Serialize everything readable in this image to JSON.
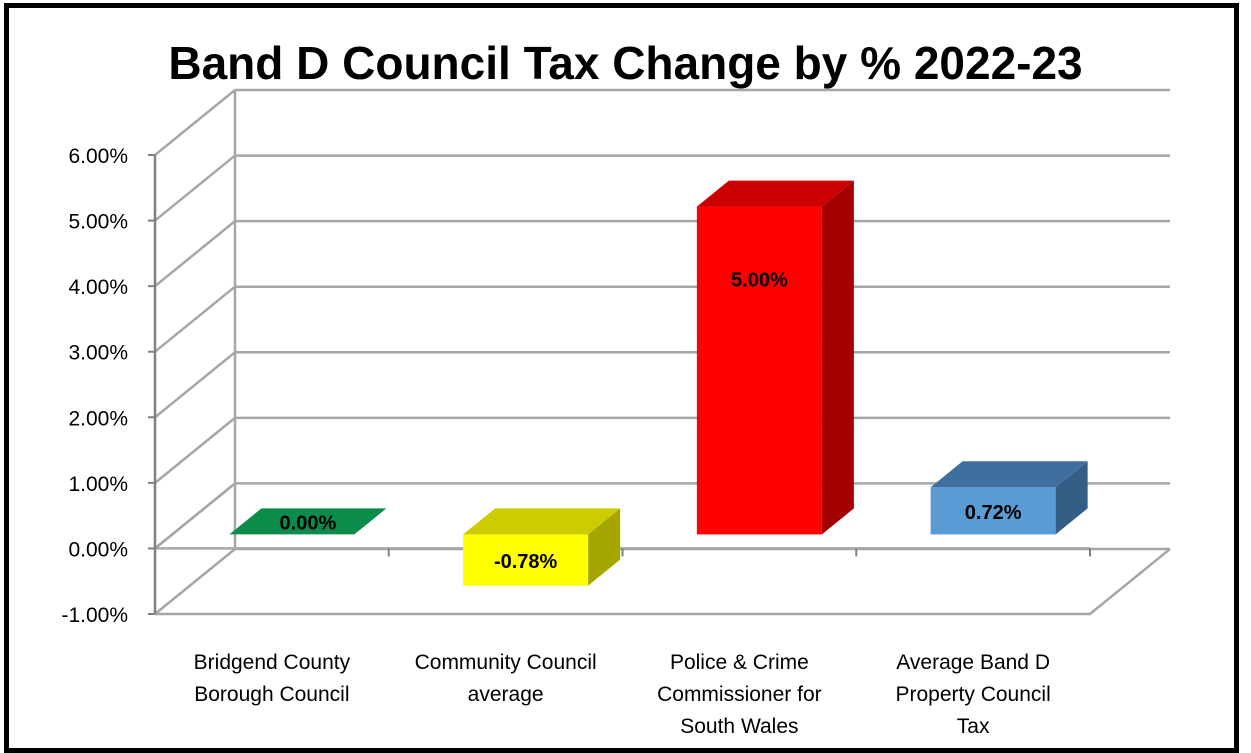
{
  "chart_data": {
    "type": "bar",
    "title": "Band D Council Tax Change by % 2022-23",
    "categories": [
      [
        "Bridgend County",
        "Borough Council"
      ],
      [
        "Community Council",
        "average"
      ],
      [
        "Police & Crime",
        "Commissioner for",
        "South Wales"
      ],
      [
        "Average Band D",
        "Property Council",
        "Tax"
      ]
    ],
    "values": [
      0.0,
      -0.78,
      5.0,
      0.72
    ],
    "data_labels": [
      "0.00%",
      "-0.78%",
      "5.00%",
      "0.72%"
    ],
    "ylim": [
      -1.0,
      6.0
    ],
    "yticks": [
      "-1.00%",
      "0.00%",
      "1.00%",
      "2.00%",
      "3.00%",
      "4.00%",
      "5.00%",
      "6.00%"
    ],
    "bar_colors": [
      {
        "front": "#00A651",
        "top": "#0B8C4A",
        "side": "#087A3F"
      },
      {
        "front": "#FFFF00",
        "top": "#CCCC00",
        "side": "#A6A600"
      },
      {
        "front": "#FF0000",
        "top": "#CC0000",
        "side": "#A50000"
      },
      {
        "front": "#5B9BD5",
        "top": "#3F6F9E",
        "side": "#345E86"
      }
    ],
    "grid": true,
    "style": "3d"
  }
}
